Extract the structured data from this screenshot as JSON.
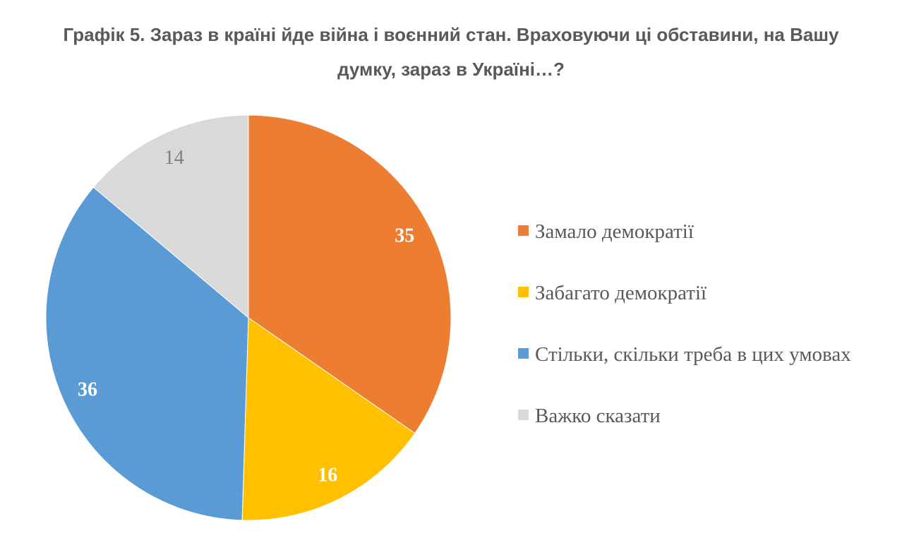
{
  "title": {
    "text": "Графік 5. Зараз в країні йде війна і воєнний стан. Враховуючи ці обставини, на Вашу думку, зараз в Україні…?"
  },
  "chart_data": {
    "type": "pie",
    "title": "Графік 5. Зараз в країні йде війна і воєнний стан. Враховуючи ці обставини, на Вашу думку, зараз в Україні…?",
    "categories": [
      "Замало демократії",
      "Забагато демократії",
      "Стільки, скільки треба в цих умовах",
      "Важко сказати"
    ],
    "values": [
      35,
      16,
      36,
      14
    ],
    "segments": [
      {
        "label": "Замало демократії",
        "value": 35,
        "color": "#ED7D31",
        "label_color": "#FFFFFF",
        "label_weight": "bold"
      },
      {
        "label": "Забагато демократії",
        "value": 16,
        "color": "#FFC000",
        "label_color": "#FFFFFF",
        "label_weight": "bold"
      },
      {
        "label": "Стільки, скільки треба в цих умовах",
        "value": 36,
        "color": "#5B9BD5",
        "label_color": "#FFFFFF",
        "label_weight": "bold"
      },
      {
        "label": "Важко сказати",
        "value": 14,
        "color": "#D9D9D9",
        "label_color": "#808080",
        "label_weight": "normal"
      }
    ],
    "start_angle_deg": 0,
    "direction": "clockwise",
    "data_labels": "inside-end",
    "label_radius_ratio": 0.87,
    "legend_position": "right",
    "slice_border_color": "#FFFFFF"
  },
  "colors": {
    "background": "#FFFFFF",
    "title_text": "#595959",
    "legend_text": "#595959"
  }
}
